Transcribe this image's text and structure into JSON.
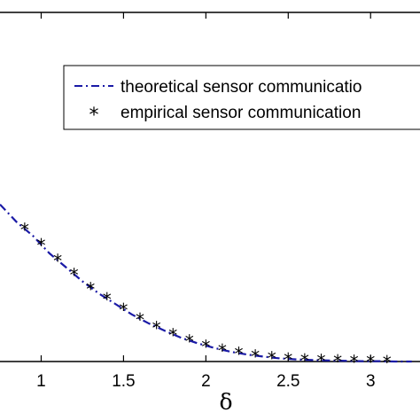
{
  "chart_data": {
    "type": "line",
    "xlabel": "δ",
    "ylabel": "",
    "title": "",
    "xlim": [
      0.75,
      3.3
    ],
    "ylim": [
      0,
      1
    ],
    "x_ticks": [
      1,
      1.5,
      2,
      2.5,
      3
    ],
    "x_tick_labels": [
      "1",
      "1.5",
      "2",
      "2.5",
      "3"
    ],
    "grid": false,
    "legend_placement": "top-right",
    "series": [
      {
        "name": "theoretical sensor communicatio",
        "style": "dash-dot",
        "color": "#1a1aa6",
        "x": [
          0.75,
          0.85,
          0.95,
          1.05,
          1.15,
          1.25,
          1.35,
          1.45,
          1.55,
          1.65,
          1.75,
          1.85,
          1.95,
          2.05,
          2.15,
          2.25,
          2.35,
          2.45,
          2.55,
          2.65,
          2.75,
          2.85,
          2.95,
          3.05,
          3.15,
          3.25
        ],
        "y": [
          0.45,
          0.4,
          0.36,
          0.31,
          0.27,
          0.23,
          0.195,
          0.165,
          0.135,
          0.11,
          0.088,
          0.068,
          0.052,
          0.039,
          0.028,
          0.02,
          0.014,
          0.009,
          0.006,
          0.004,
          0.003,
          0.002,
          0.001,
          0.001,
          0.0,
          0.0
        ]
      },
      {
        "name": "empirical sensor communication",
        "style": "markers",
        "marker": "*",
        "color": "#000000",
        "x": [
          0.9,
          1.0,
          1.1,
          1.2,
          1.3,
          1.4,
          1.5,
          1.6,
          1.7,
          1.8,
          1.9,
          2.0,
          2.1,
          2.2,
          2.3,
          2.4,
          2.5,
          2.6,
          2.7,
          2.8,
          2.9,
          3.0,
          3.1
        ],
        "y": [
          0.38,
          0.335,
          0.29,
          0.25,
          0.21,
          0.18,
          0.15,
          0.122,
          0.098,
          0.077,
          0.06,
          0.045,
          0.033,
          0.024,
          0.017,
          0.011,
          0.008,
          0.005,
          0.004,
          0.002,
          0.001,
          0.001,
          0.0
        ]
      }
    ]
  }
}
